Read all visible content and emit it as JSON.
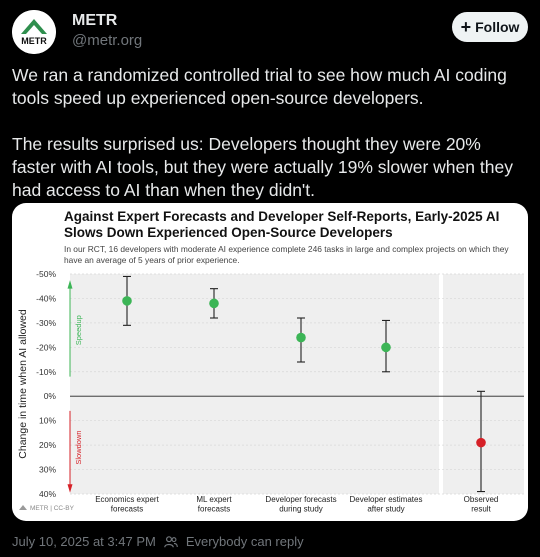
{
  "account": {
    "name": "METR",
    "handle": "@metr.org",
    "logo_text": "METR",
    "follow_label": "Follow"
  },
  "tweet": {
    "paragraph1": "We ran a randomized controlled trial to see how much AI coding tools speed up experienced open-source developers.",
    "paragraph2": "The results surprised us: Developers thought they were 20% faster with AI tools, but they were actually 19% slower when they had access to AI than when they didn't."
  },
  "chart": {
    "title": "Against Expert Forecasts and Developer Self-Reports, Early-2025 AI Slows Down Experienced Open-Source Developers",
    "subtitle": "In our RCT, 16 developers with moderate AI experience complete 246 tasks in large and complex projects on which they have an average of 5 years of prior experience.",
    "watermark": "METR | CC-BY",
    "speedup_label": "Speedup",
    "slowdown_label": "Slowdown"
  },
  "chart_data": {
    "type": "scatter",
    "ylabel": "Change in time when AI allowed",
    "ylim": [
      -50,
      40
    ],
    "y_inverted": true,
    "yticks": [
      -50,
      -40,
      -30,
      -20,
      -10,
      0,
      10,
      20,
      30,
      40
    ],
    "ytick_labels": [
      "-50%",
      "-40%",
      "-30%",
      "-20%",
      "-10%",
      "0%",
      "10%",
      "20%",
      "30%",
      "40%"
    ],
    "categories": [
      [
        "Economics expert",
        "forecasts"
      ],
      [
        "ML expert",
        "forecasts"
      ],
      [
        "Developer forecasts",
        "during study"
      ],
      [
        "Developer estimates",
        "after study"
      ],
      [
        "Observed",
        "result"
      ]
    ],
    "values": [
      -39,
      -38,
      -24,
      -20,
      19
    ],
    "error_low": [
      -49,
      -44,
      -32,
      -31,
      -2
    ],
    "error_high": [
      -29,
      -32,
      -14,
      -10,
      39
    ],
    "point_colors": [
      "#3cb556",
      "#3cb556",
      "#3cb556",
      "#3cb556",
      "#d62027"
    ],
    "highlighted_category": 4,
    "grid": true
  },
  "footer": {
    "timestamp": "July 10, 2025 at 3:47 PM",
    "audience": "Everybody can reply"
  },
  "colors": {
    "speedup": "#3cb556",
    "slowdown": "#d62027",
    "panel_bg": "#efefef"
  },
  "icons": {
    "logo": "metr-logo-icon",
    "audience": "people-icon"
  }
}
